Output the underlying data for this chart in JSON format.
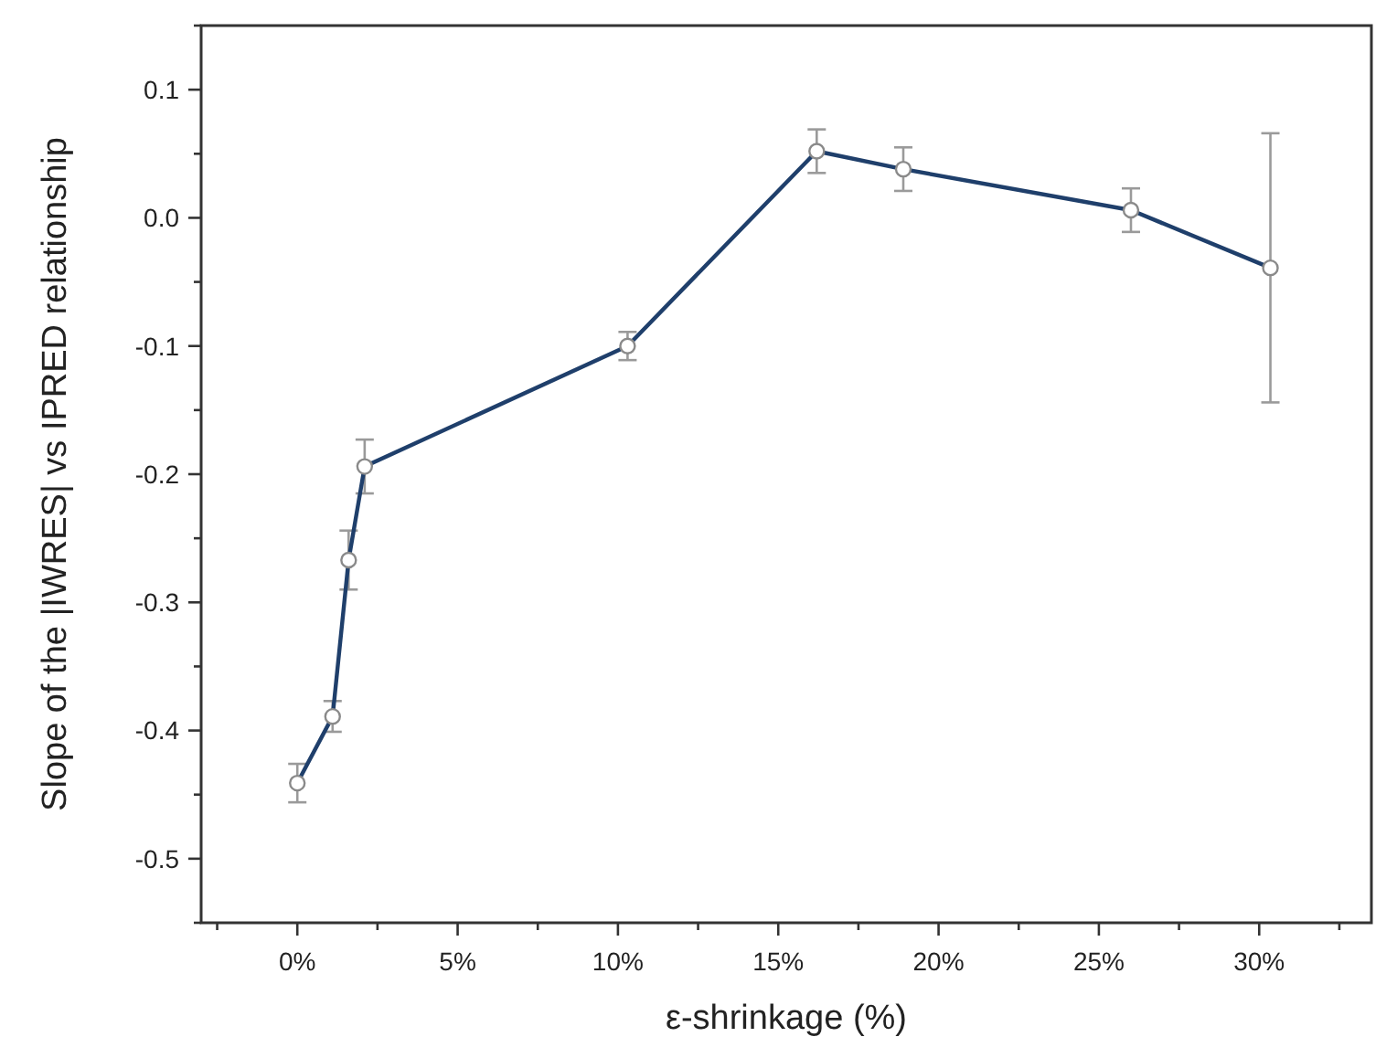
{
  "chart_data": {
    "type": "line",
    "xlabel": "ε-shrinkage (%)",
    "ylabel": "Slope of the |IWRES| vs IPRED relationship",
    "x": [
      0,
      1.1,
      1.6,
      2.1,
      10.3,
      16.2,
      18.9,
      26,
      30.35
    ],
    "series": [
      {
        "color": "#1f3f6b",
        "values": [
          -0.441,
          -0.389,
          -0.267,
          -0.194,
          -0.1,
          0.052,
          0.038,
          0.006,
          -0.039
        ],
        "errors": [
          0.015,
          0.012,
          0.023,
          0.021,
          0.011,
          0.017,
          0.017,
          0.017,
          0.105
        ]
      }
    ],
    "marker": "circle",
    "line_style": "solid",
    "grid": false,
    "xlim": [
      -3,
      33.5
    ],
    "ylim": [
      -0.55,
      0.15
    ],
    "xticks": [
      {
        "value": -2.5,
        "label": null
      },
      {
        "value": 0,
        "label": "0%"
      },
      {
        "value": 2.5,
        "label": null
      },
      {
        "value": 5,
        "label": "5%"
      },
      {
        "value": 7.5,
        "label": null
      },
      {
        "value": 10,
        "label": "10%"
      },
      {
        "value": 12.5,
        "label": null
      },
      {
        "value": 15,
        "label": "15%"
      },
      {
        "value": 17.5,
        "label": null
      },
      {
        "value": 20,
        "label": "20%"
      },
      {
        "value": 22.5,
        "label": null
      },
      {
        "value": 25,
        "label": "25%"
      },
      {
        "value": 27.5,
        "label": null
      },
      {
        "value": 30,
        "label": "30%"
      },
      {
        "value": 32.5,
        "label": null
      }
    ],
    "yticks": [
      {
        "value": -0.55,
        "label": null
      },
      {
        "value": -0.5,
        "label": "-0.5"
      },
      {
        "value": -0.45,
        "label": null
      },
      {
        "value": -0.4,
        "label": "-0.4"
      },
      {
        "value": -0.35,
        "label": null
      },
      {
        "value": -0.3,
        "label": "-0.3"
      },
      {
        "value": -0.25,
        "label": null
      },
      {
        "value": -0.2,
        "label": "-0.2"
      },
      {
        "value": -0.15,
        "label": null
      },
      {
        "value": -0.1,
        "label": "-0.1"
      },
      {
        "value": -0.05,
        "label": null
      },
      {
        "value": 0,
        "label": "0.0"
      },
      {
        "value": 0.05,
        "label": null
      },
      {
        "value": 0.1,
        "label": "0.1"
      },
      {
        "value": 0.15,
        "label": null
      }
    ]
  }
}
